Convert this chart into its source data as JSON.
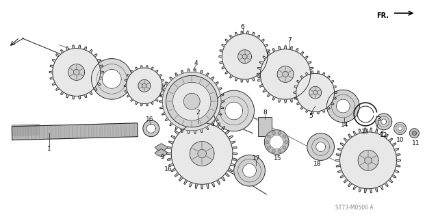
{
  "bg_color": "#ffffff",
  "fig_w": 6.21,
  "fig_h": 3.2,
  "dpi": 100,
  "subtitle_code": "ST73-M0500 A",
  "fr_label": "FR.",
  "line_color": "#1a1a1a",
  "gear_fill": "#d8d8d8",
  "gear_dark": "#888888",
  "ring_fill": "#e0e0e0",
  "shaft_fill": "#b8b8b8"
}
